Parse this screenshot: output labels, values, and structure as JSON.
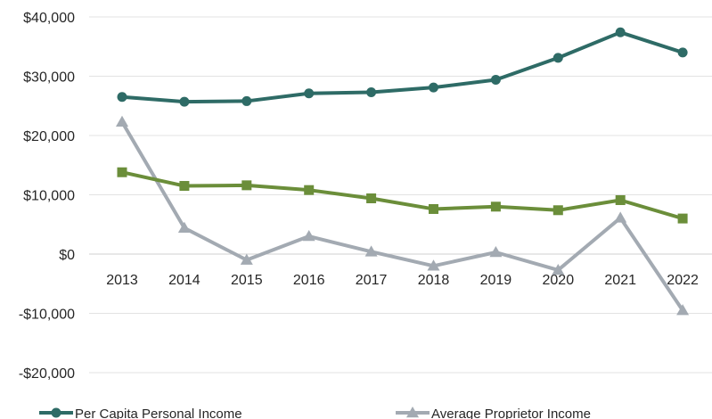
{
  "chart_data": {
    "type": "line",
    "title": "",
    "xlabel": "",
    "ylabel": "",
    "categories": [
      "2013",
      "2014",
      "2015",
      "2016",
      "2017",
      "2018",
      "2019",
      "2020",
      "2021",
      "2022"
    ],
    "ylim": [
      -20000,
      40000
    ],
    "y_ticks": [
      40000,
      30000,
      20000,
      10000,
      0,
      -10000,
      -20000
    ],
    "y_tick_labels": [
      "$40,000",
      "$30,000",
      "$20,000",
      "$10,000",
      "$0",
      "-$10,000",
      "-$20,000"
    ],
    "grid": true,
    "legend_position": "bottom",
    "series": [
      {
        "name": "Per Capita Personal Income",
        "color": "#2e6b66",
        "marker": "circle",
        "values": [
          26500,
          25700,
          25800,
          27100,
          27300,
          28100,
          29400,
          33100,
          37400,
          34000
        ]
      },
      {
        "name": "",
        "color": "#6b8e3a",
        "marker": "square",
        "values": [
          13800,
          11500,
          11600,
          10800,
          9400,
          7600,
          8000,
          7400,
          9100,
          6000
        ]
      },
      {
        "name": "Average Proprietor Income",
        "color": "#a3aab2",
        "marker": "triangle",
        "values": [
          22300,
          4400,
          -1000,
          3000,
          400,
          -2000,
          300,
          -2700,
          6100,
          -9500
        ]
      }
    ]
  }
}
